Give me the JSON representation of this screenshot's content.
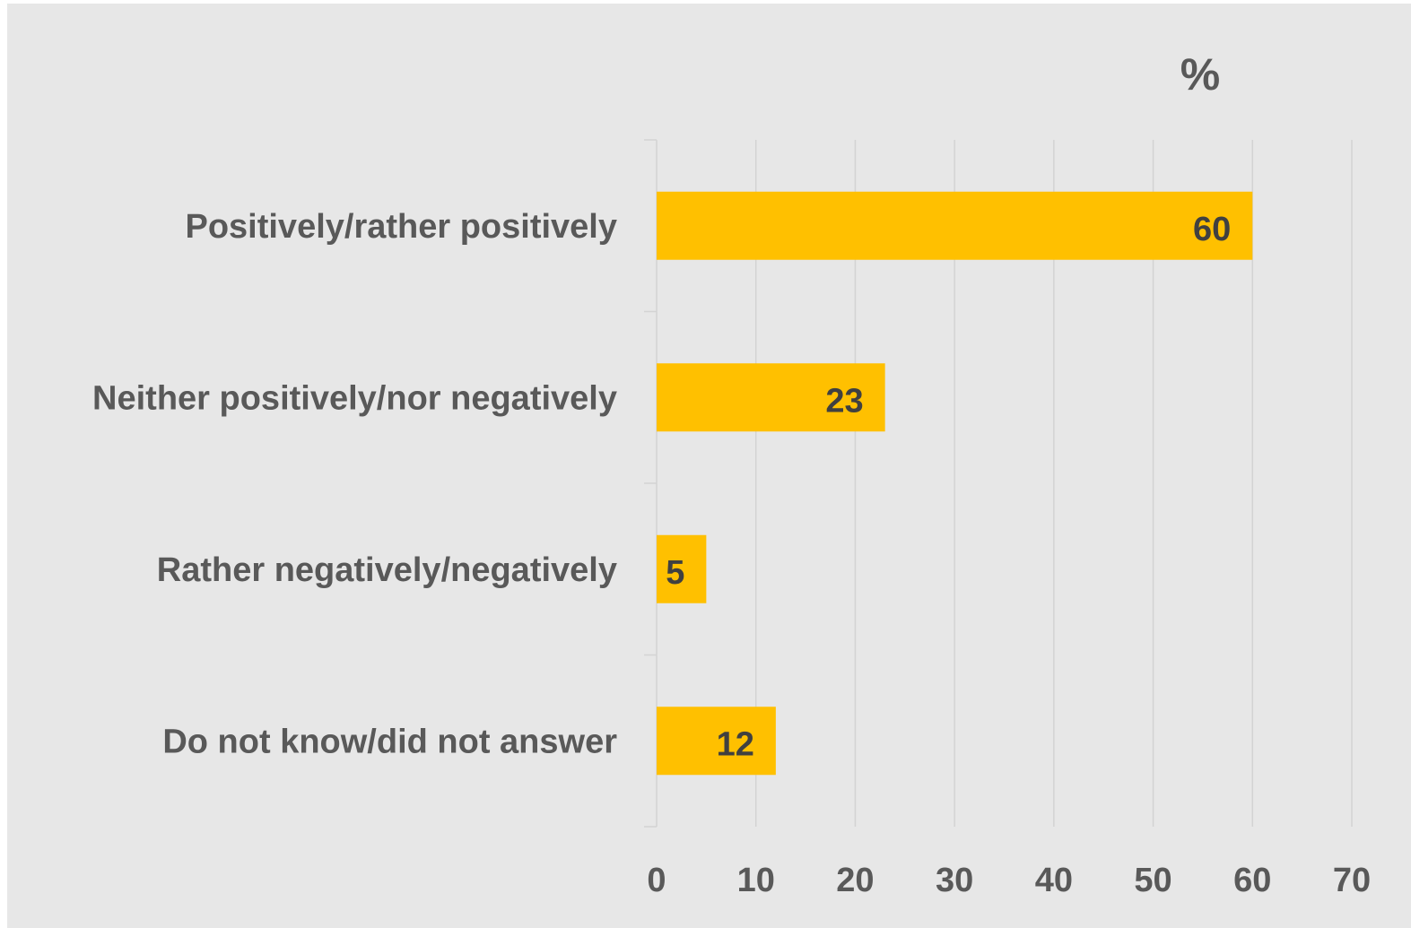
{
  "chart_data": {
    "type": "bar",
    "orientation": "horizontal",
    "categories": [
      "Positively/rather positively",
      "Neither positively/nor negatively",
      "Rather negatively/negatively",
      "Do not know/did not answer"
    ],
    "values": [
      60,
      23,
      5,
      12
    ],
    "unit_label": "%",
    "xlim": [
      0,
      70
    ],
    "xticks": [
      "0",
      "10",
      "20",
      "30",
      "40",
      "50",
      "60",
      "70"
    ],
    "grid": true,
    "legend": "none",
    "colors": {
      "bar": "#FFC000",
      "background": "#E7E7E7",
      "grid": "#D3D3D3",
      "label_text": "#595959",
      "value_text": "#404040"
    }
  }
}
